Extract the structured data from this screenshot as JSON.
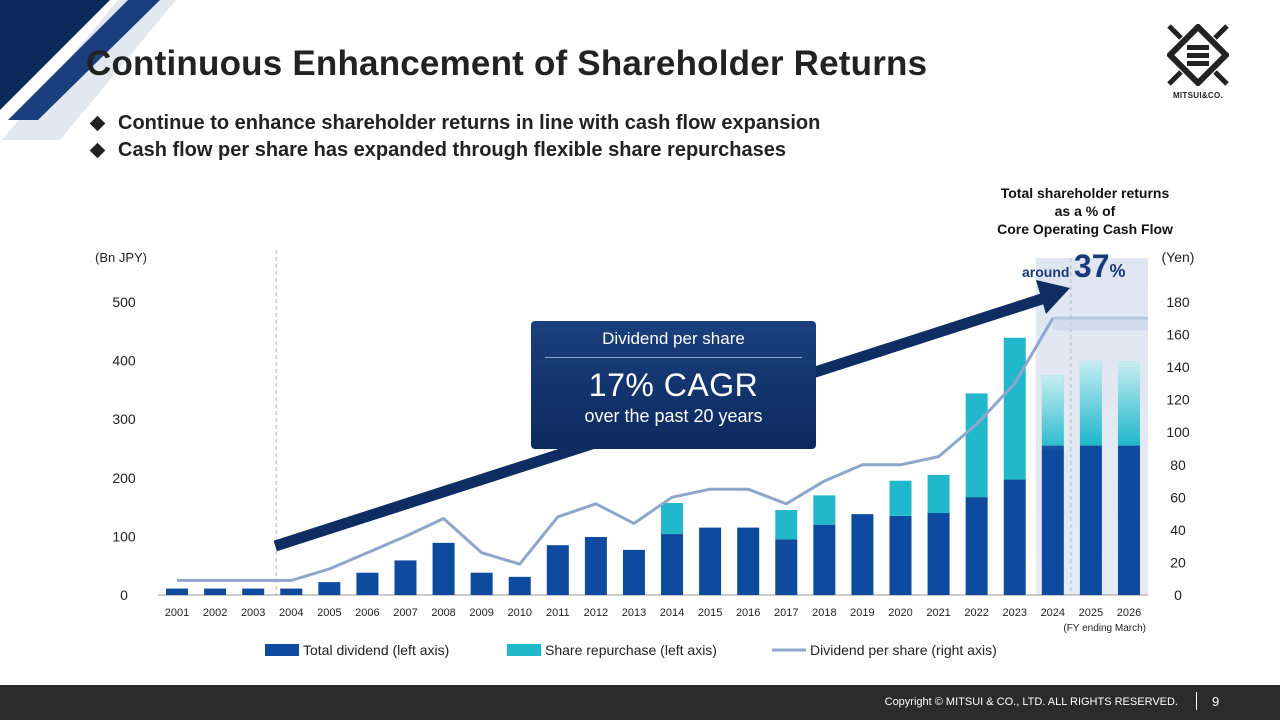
{
  "header": {
    "title": "Continuous Enhancement of Shareholder Returns",
    "bullets": [
      "Continue to enhance shareholder returns in line with cash flow expansion",
      "Cash flow per share has expanded through flexible share repurchases"
    ]
  },
  "logo": {
    "text": "MITSUI&CO."
  },
  "callout": {
    "header": "Dividend per share",
    "value": "17% CAGR",
    "subtext": "over the past 20 years"
  },
  "ratio_note": {
    "label_lines": [
      "Total shareholder returns",
      "as a % of",
      "Core Operating Cash Flow"
    ],
    "prefix": "around",
    "value": "37",
    "unit": "%"
  },
  "footer": {
    "copyright": "Copyright © MITSUI & CO., LTD. ALL RIGHTS RESERVED.",
    "page": "9"
  },
  "colors": {
    "total_dividend": "#0e4a9e",
    "share_repurchase": "#22b8cc",
    "dps_line": "#8ea6cc",
    "arrow": "#0d2d63",
    "navy": "#0c2a5e"
  },
  "chart_data": {
    "type": "bar",
    "stacked": true,
    "categories": [
      "2001",
      "2002",
      "2003",
      "2004",
      "2005",
      "2006",
      "2007",
      "2008",
      "2009",
      "2010",
      "2011",
      "2012",
      "2013",
      "2014",
      "2015",
      "2016",
      "2017",
      "2018",
      "2019",
      "2020",
      "2021",
      "2022",
      "2023",
      "2024",
      "2025",
      "2026"
    ],
    "forecast_categories": [
      "2024",
      "2025",
      "2026"
    ],
    "left_axis": {
      "unit_label": "(Bn JPY)",
      "ylim": [
        0,
        500
      ],
      "ticks": [
        0,
        100,
        200,
        300,
        400,
        500
      ]
    },
    "right_axis": {
      "unit_label": "(Yen)",
      "ylim": [
        0,
        180
      ],
      "ticks": [
        0,
        20,
        40,
        60,
        80,
        100,
        120,
        140,
        160,
        180
      ]
    },
    "x_note": "(FY ending March)",
    "series": [
      {
        "name": "Total dividend (left axis)",
        "kind": "bar",
        "axis": "left",
        "values": [
          11,
          11,
          11,
          11,
          22,
          38,
          59,
          89,
          38,
          31,
          85,
          99,
          77,
          104,
          115,
          115,
          95,
          120,
          138,
          135,
          140,
          167,
          197,
          255,
          255,
          255
        ]
      },
      {
        "name": "Share repurchase (left axis)",
        "kind": "bar",
        "axis": "left",
        "values": [
          0,
          0,
          0,
          0,
          0,
          0,
          0,
          0,
          0,
          0,
          0,
          0,
          0,
          53,
          0,
          0,
          50,
          50,
          0,
          60,
          65,
          177,
          242,
          120,
          145,
          143
        ]
      },
      {
        "name": "Dividend per share (right axis)",
        "kind": "line",
        "axis": "right",
        "values": [
          9,
          9,
          9,
          9,
          16,
          26,
          36,
          47,
          26,
          19,
          48,
          56,
          44,
          60,
          65,
          65,
          56,
          70,
          80,
          80,
          85,
          105,
          130,
          170,
          null,
          null
        ]
      }
    ]
  }
}
